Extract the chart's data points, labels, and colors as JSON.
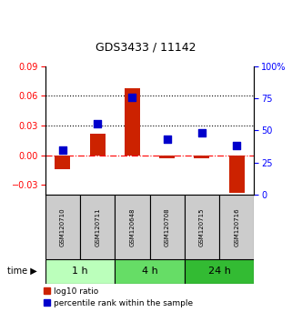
{
  "title": "GDS3433 / 11142",
  "samples": [
    "GSM120710",
    "GSM120711",
    "GSM120648",
    "GSM120708",
    "GSM120715",
    "GSM120716"
  ],
  "log10_ratio": [
    -0.014,
    0.022,
    0.068,
    -0.003,
    -0.003,
    -0.038
  ],
  "percentile_rank": [
    35,
    55,
    76,
    43,
    48,
    38
  ],
  "time_groups": [
    {
      "label": "1 h",
      "indices": [
        0,
        1
      ],
      "color": "#bbffbb"
    },
    {
      "label": "4 h",
      "indices": [
        2,
        3
      ],
      "color": "#66dd66"
    },
    {
      "label": "24 h",
      "indices": [
        4,
        5
      ],
      "color": "#33bb33"
    }
  ],
  "bar_color": "#cc2200",
  "dot_color": "#0000cc",
  "ylim_left": [
    -0.04,
    0.09
  ],
  "ylim_right": [
    0,
    100
  ],
  "yticks_left": [
    -0.03,
    0,
    0.03,
    0.06,
    0.09
  ],
  "yticks_right": [
    0,
    25,
    50,
    75,
    100
  ],
  "hlines": [
    0.03,
    0.06
  ],
  "background_color": "#ffffff",
  "bar_width": 0.45,
  "dot_size": 30,
  "sample_bg": "#cccccc",
  "label_fontsize": 5.0,
  "time_fontsize": 8,
  "legend_fontsize": 6.5
}
